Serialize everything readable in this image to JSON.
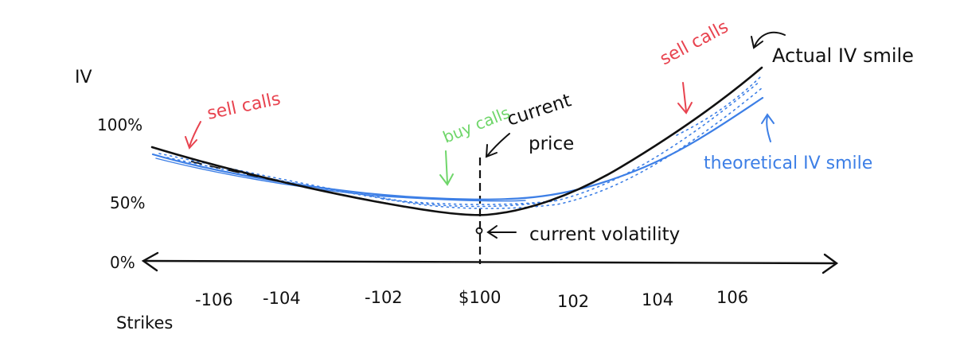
{
  "labels": {
    "iv_axis": "IV",
    "y100": "100%",
    "y50": "50%",
    "y0": "0%",
    "strikes": "Strikes",
    "sell_calls_left": "sell calls",
    "sell_calls_right": "sell calls",
    "buy_calls": "buy calls",
    "current_price_1": "current",
    "current_price_2": "price",
    "current_volatility": "current volatility",
    "actual_iv": "Actual IV smile",
    "theoretical_iv": "theoretical IV smile"
  },
  "x_ticks": [
    "-106",
    "-104",
    "-102",
    "$100",
    "102",
    "104",
    "106"
  ],
  "colors": {
    "ink": "#111111",
    "red": "#e8434f",
    "green": "#6fd66a",
    "blue": "#3d7fe6"
  }
}
